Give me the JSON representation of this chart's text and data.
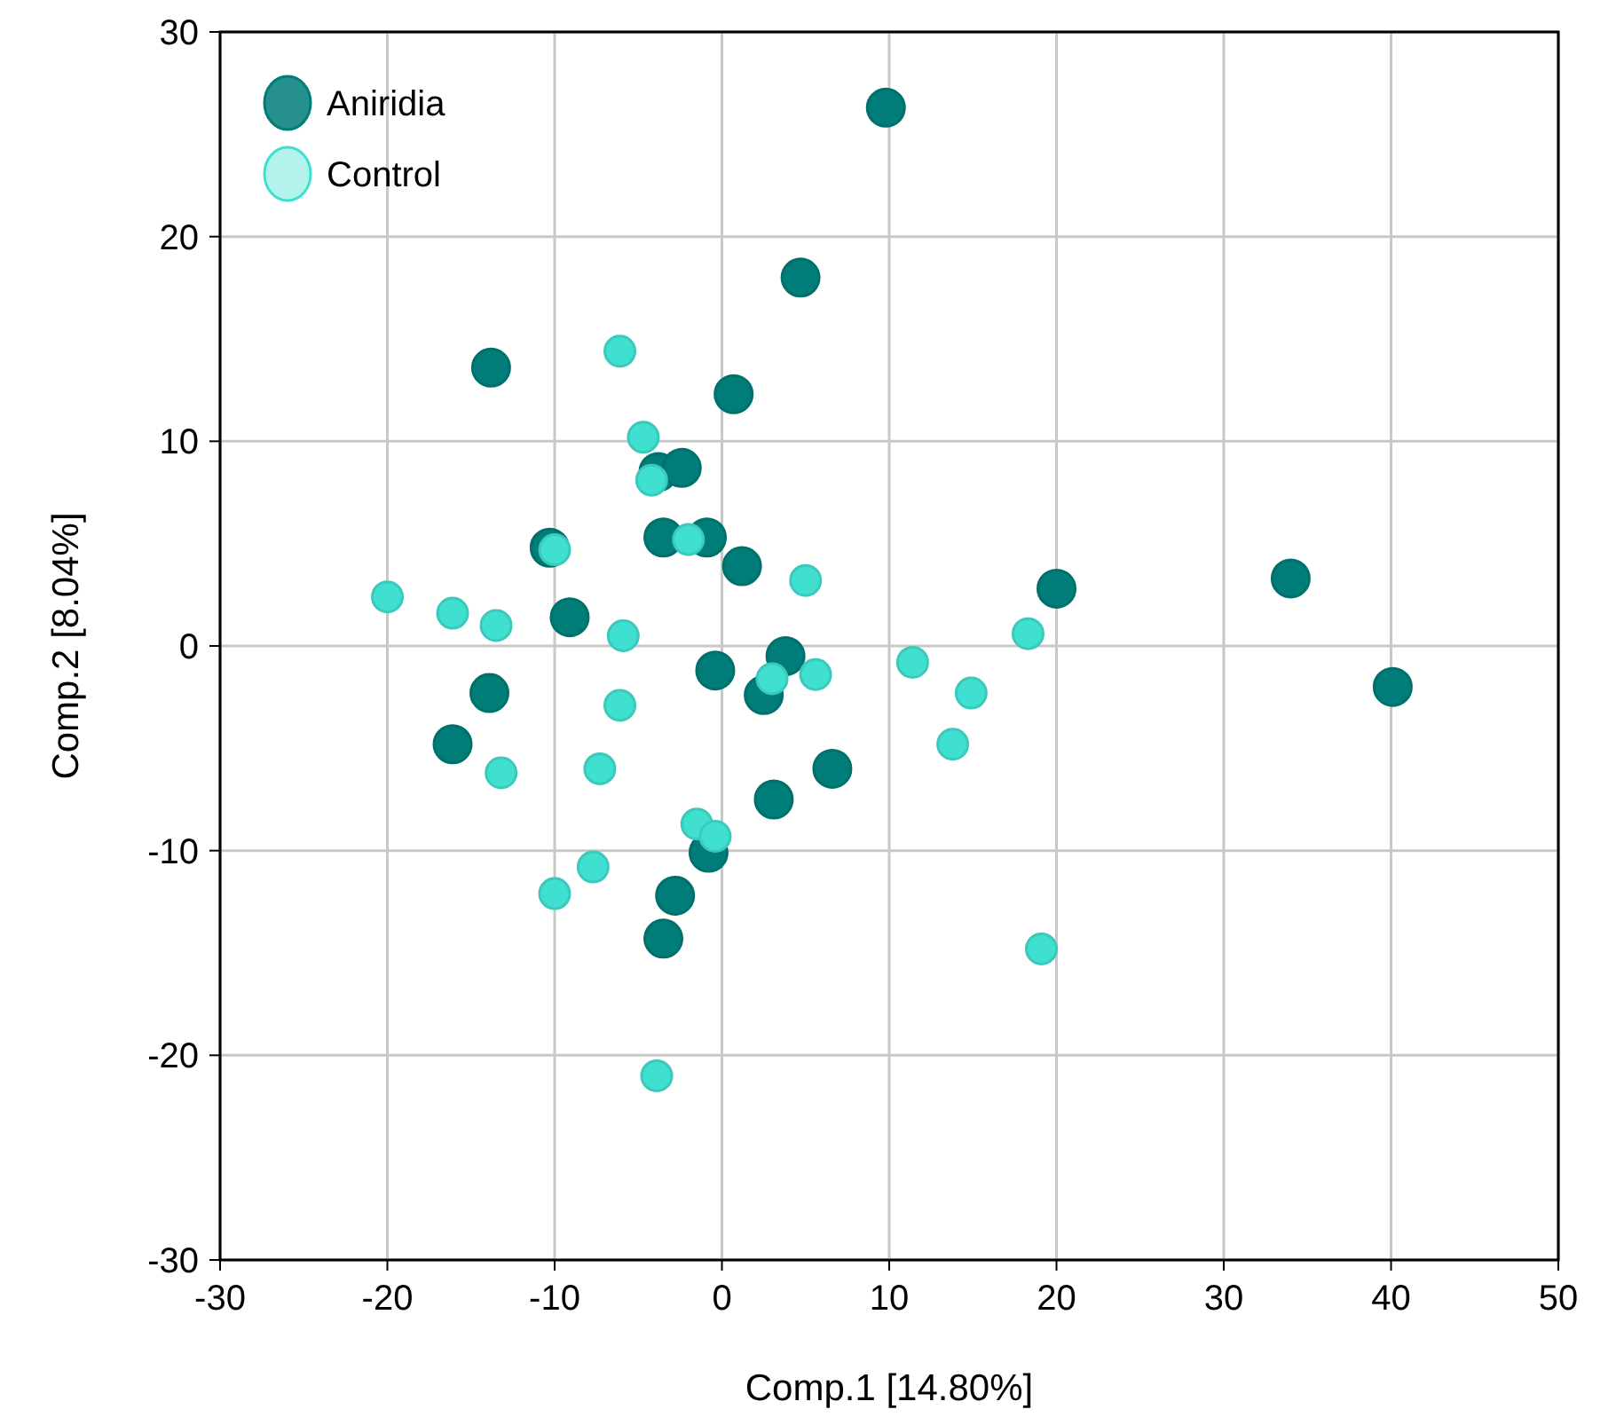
{
  "chart_data": {
    "type": "scatter",
    "xlabel": "Comp.1 [14.80%]",
    "ylabel": "Comp.2 [8.04%]",
    "xlim": [
      -30,
      50
    ],
    "xticks": [
      -30,
      -20,
      -10,
      0,
      10,
      20,
      30,
      40,
      50
    ],
    "ylim": [
      -30,
      30
    ],
    "yticks": [
      -30,
      -20,
      -10,
      0,
      10,
      20,
      30
    ],
    "grid": true,
    "legend": "top left",
    "marker": "circle",
    "series": [
      {
        "name": "Aniridia",
        "color": "#007d78",
        "x": [
          9.8,
          4.7,
          -13.8,
          0.7,
          -3.8,
          -2.4,
          -10.3,
          -3.5,
          -0.9,
          1.2,
          20.0,
          34.0,
          -9.1,
          40.1,
          3.8,
          -0.4,
          -13.9,
          2.5,
          -16.1,
          6.6,
          3.1,
          -0.8,
          -2.8,
          -3.5
        ],
        "values": [
          26.3,
          18.0,
          13.6,
          12.3,
          8.5,
          8.7,
          4.8,
          5.3,
          5.3,
          3.9,
          2.8,
          3.3,
          1.4,
          -2.0,
          -0.5,
          -1.2,
          -2.3,
          -2.4,
          -4.8,
          -6.0,
          -7.5,
          -10.1,
          -12.2,
          -14.3
        ]
      },
      {
        "name": "Control",
        "color": "#40e0d0",
        "x": [
          -20.0,
          -16.1,
          -13.5,
          -10.0,
          -6.1,
          -4.7,
          -4.2,
          -2.0,
          -5.9,
          -6.1,
          -13.2,
          -7.3,
          -7.7,
          -10.0,
          -1.5,
          -0.4,
          -3.9,
          3.0,
          5.0,
          5.6,
          11.4,
          14.9,
          13.8,
          18.3,
          19.1
        ],
        "values": [
          2.4,
          1.6,
          1.0,
          4.7,
          14.4,
          10.2,
          8.1,
          5.2,
          0.5,
          -2.9,
          -6.2,
          -6.0,
          -10.8,
          -12.1,
          -8.7,
          -9.3,
          -21.0,
          -1.6,
          3.2,
          -1.4,
          -0.8,
          -2.3,
          -4.8,
          0.6,
          -14.8
        ]
      }
    ]
  }
}
